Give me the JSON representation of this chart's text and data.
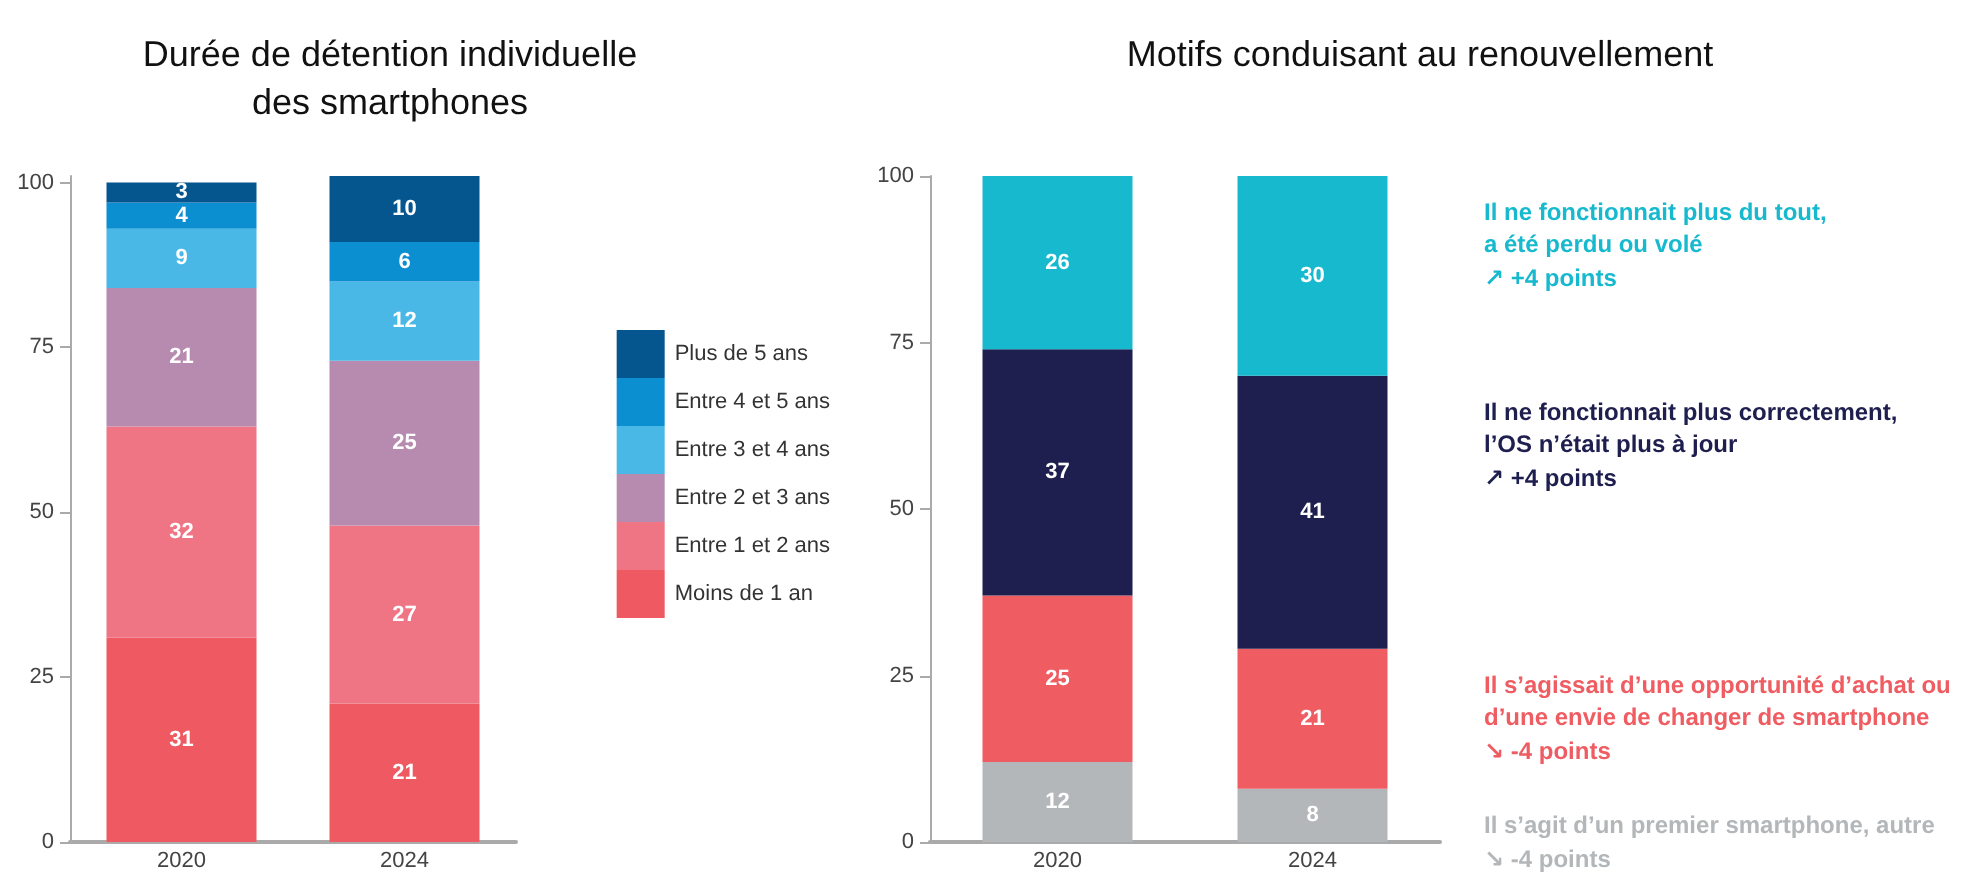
{
  "chart_data": [
    {
      "type": "bar",
      "title": "Durée de détention individuelle\ndes smartphones",
      "categories": [
        "2020",
        "2024"
      ],
      "stacked": true,
      "data_labels": true,
      "legend": "right",
      "ylim": [
        0,
        101
      ],
      "yticks": [
        0,
        25,
        50,
        75,
        100
      ],
      "series": [
        {
          "name": "Moins de 1 an",
          "color": "#ef5a62",
          "values": [
            31,
            21
          ]
        },
        {
          "name": "Entre 1 et 2 ans",
          "color": "#ef7585",
          "values": [
            32,
            27
          ]
        },
        {
          "name": "Entre 2 et 3 ans",
          "color": "#b78ab0",
          "values": [
            21,
            25
          ]
        },
        {
          "name": "Entre 3 et 4 ans",
          "color": "#4ab8e6",
          "values": [
            9,
            12
          ]
        },
        {
          "name": "Entre 4 et 5 ans",
          "color": "#0c8fd1",
          "values": [
            4,
            6
          ]
        },
        {
          "name": "Plus de 5 ans",
          "color": "#05558e",
          "values": [
            3,
            10
          ]
        }
      ]
    },
    {
      "type": "bar",
      "title": "Motifs conduisant au renouvellement",
      "categories": [
        "2020",
        "2024"
      ],
      "stacked": true,
      "data_labels": true,
      "ylim": [
        0,
        100
      ],
      "yticks": [
        0,
        25,
        50,
        75,
        100
      ],
      "series": [
        {
          "name": "Il s’agit d’un premier smartphone, autre",
          "color": "#b3b7b9",
          "values": [
            12,
            8
          ]
        },
        {
          "name": "Il s’agissait d’une opportunité d’achat ou\nd’une envie de changer de smartphone",
          "color": "#ef5d63",
          "values": [
            25,
            21
          ]
        },
        {
          "name": "Il ne fonctionnait plus correctement,\nl’OS n’était plus à jour",
          "color": "#1e1f4f",
          "values": [
            37,
            41
          ]
        },
        {
          "name": "Il ne fonctionnait plus du tout,\na été perdu ou volé",
          "color": "#17b9cf",
          "values": [
            26,
            30
          ]
        }
      ],
      "annotations": [
        "↗ +4 points",
        "↗ +4 points",
        "↘ -4 points",
        "↘ -4 points"
      ]
    }
  ]
}
